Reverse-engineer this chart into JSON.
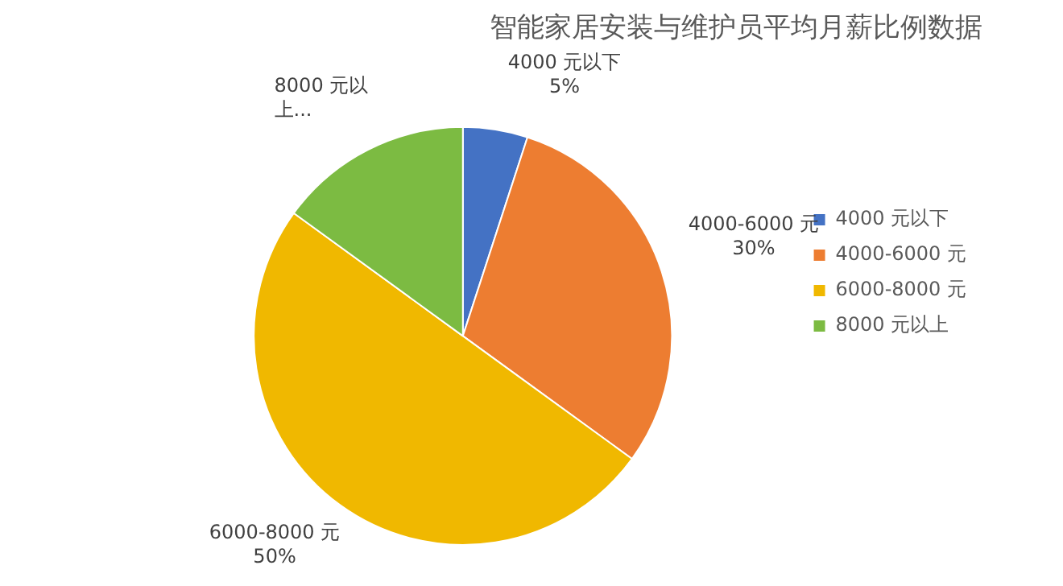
{
  "chart_data": {
    "type": "pie",
    "title": "智能家居安装与维护员平均月薪比例数据",
    "categories": [
      "4000 元以下",
      "4000-6000 元",
      "6000-8000 元",
      "8000 元以上"
    ],
    "values": [
      5,
      30,
      50,
      15
    ],
    "colors": [
      "#4472c4",
      "#ed7d31",
      "#f0b800",
      "#7cbb42"
    ],
    "value_labels": [
      "5%",
      "30%",
      "50%",
      "..."
    ],
    "legend": "right"
  }
}
